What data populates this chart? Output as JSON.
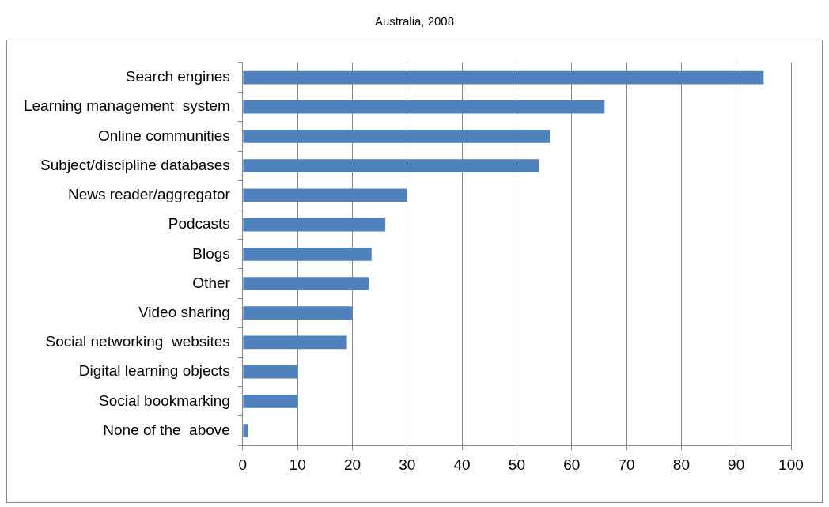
{
  "chart_data": {
    "type": "bar",
    "orientation": "horizontal",
    "title": "Australia, 2008",
    "categories": [
      "Search engines",
      "Learning management  system",
      "Online communities",
      "Subject/discipline databases",
      "News reader/aggregator",
      "Podcasts",
      "Blogs",
      "Other",
      "Video sharing",
      "Social networking  websites",
      "Digital learning objects",
      "Social bookmarking",
      "None of the  above"
    ],
    "values": [
      95,
      66,
      56,
      54,
      30,
      26,
      23.5,
      23,
      20,
      19,
      10,
      10,
      1
    ],
    "color": "#4f81bd",
    "xlim": [
      0,
      100
    ],
    "xticks": [
      0,
      10,
      20,
      30,
      40,
      50,
      60,
      70,
      80,
      90,
      100
    ],
    "grid": "x",
    "legend": false
  }
}
